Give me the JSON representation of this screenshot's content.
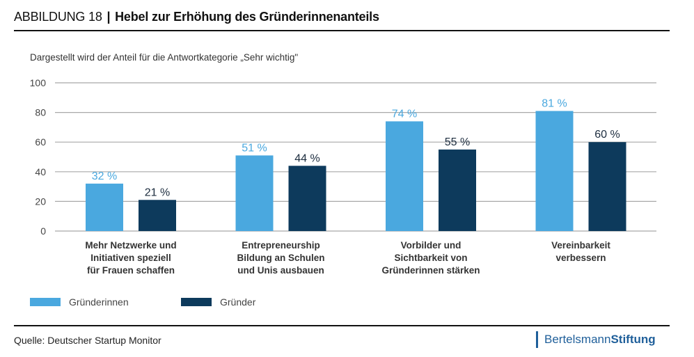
{
  "header": {
    "figure_label": "ABBILDUNG 18",
    "separator": "|",
    "title": "Hebel zur Erhöhung des Gründerinnenanteils"
  },
  "subtitle": "Dargestellt wird der Anteil für die Antwortkategorie „Sehr wichtig\"",
  "chart_data": {
    "type": "bar",
    "title": "Hebel zur Erhöhung des Gründerinnenanteils",
    "subtitle": "Dargestellt wird der Anteil für die Antwortkategorie „Sehr wichtig\"",
    "xlabel": "",
    "ylabel": "",
    "ylim": [
      0,
      100
    ],
    "yticks": [
      0,
      20,
      40,
      60,
      80,
      100
    ],
    "grid": true,
    "legend_position": "bottom-left",
    "categories": [
      [
        "Mehr Netzwerke und",
        "Initiativen speziell",
        "für Frauen schaffen"
      ],
      [
        "Entrepreneurship",
        "Bildung an Schulen",
        "und Unis ausbauen"
      ],
      [
        "Vorbilder und",
        "Sichtbarkeit von",
        "Gründerinnen stärken"
      ],
      [
        "Vereinbarkeit",
        "verbessern"
      ]
    ],
    "series": [
      {
        "name": "Gründerinnen",
        "color": "#4aa8df",
        "values": [
          32,
          51,
          74,
          81
        ],
        "labels": [
          "32 %",
          "51 %",
          "74 %",
          "81 %"
        ]
      },
      {
        "name": "Gründer",
        "color": "#0d3a5c",
        "values": [
          21,
          44,
          55,
          60
        ],
        "labels": [
          "21 %",
          "44 %",
          "55 %",
          "60 %"
        ]
      }
    ]
  },
  "legend": [
    {
      "label": "Gründerinnen",
      "color": "#4aa8df"
    },
    {
      "label": "Gründer",
      "color": "#0d3a5c"
    }
  ],
  "footer": {
    "source": "Quelle: Deutscher Startup Monitor",
    "logo_part1": "Bertelsmann",
    "logo_part2": "Stiftung",
    "logo_color": "#1f5f9a"
  }
}
